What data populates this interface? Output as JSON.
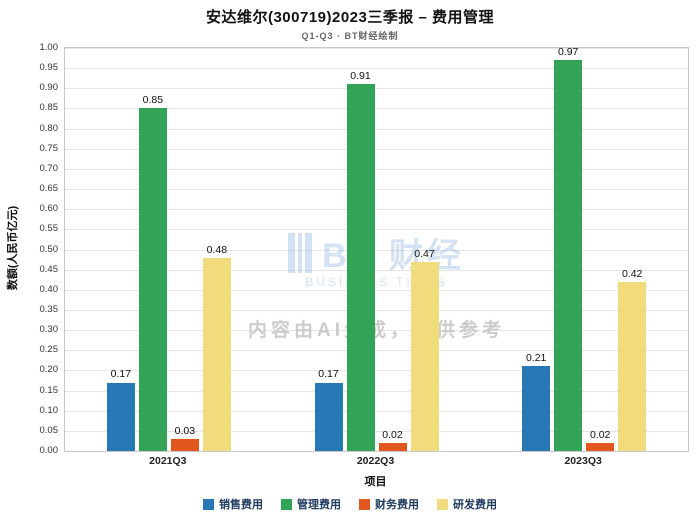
{
  "title": "安达维尔(300719)2023三季报 – 费用管理",
  "subtitle": "Q1-Q3 · BT财经绘制",
  "watermark": {
    "logo": "BT 财经",
    "logo_sub": "BUSINESS TIMES",
    "disclaimer": "内容由AI生成，仅供参考"
  },
  "chart_data": {
    "type": "bar",
    "title": "安达维尔(300719)2023三季报 – 费用管理",
    "subtitle": "Q1-Q3 · BT财经绘制",
    "categories": [
      "2021Q3",
      "2022Q3",
      "2023Q3"
    ],
    "series": [
      {
        "name": "销售费用",
        "color": "#2878b5",
        "values": [
          0.17,
          0.17,
          0.21
        ]
      },
      {
        "name": "管理费用",
        "color": "#33a357",
        "values": [
          0.85,
          0.91,
          0.97
        ]
      },
      {
        "name": "财务费用",
        "color": "#e2571d",
        "values": [
          0.03,
          0.02,
          0.02
        ]
      },
      {
        "name": "研发费用",
        "color": "#f0dc7d",
        "values": [
          0.48,
          0.47,
          0.42
        ]
      }
    ],
    "xlabel": "项目",
    "ylabel": "数额(人民币亿元)",
    "ylim": [
      0.0,
      1.0
    ],
    "ytick_step": 0.05,
    "ytick_format": "2dp",
    "grid": true,
    "legend_position": "bottom"
  }
}
